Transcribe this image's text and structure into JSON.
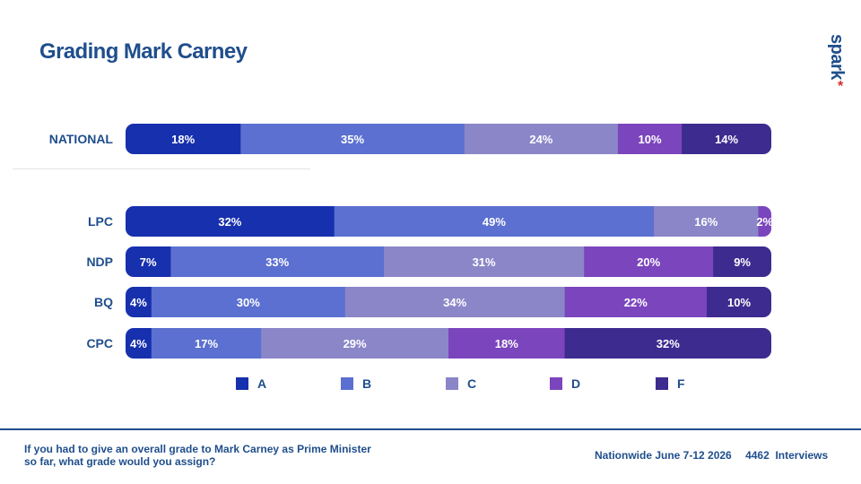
{
  "title": "Grading Mark Carney",
  "logo": {
    "text": "spark",
    "mark": "*"
  },
  "chart_data": {
    "type": "bar",
    "orientation": "horizontal",
    "stacked": true,
    "normalized": true,
    "categories": [
      "NATIONAL",
      "LPC",
      "NDP",
      "BQ",
      "CPC"
    ],
    "series": [
      {
        "name": "A",
        "color": "#1730ad",
        "values": [
          18,
          32,
          7,
          4,
          4
        ]
      },
      {
        "name": "B",
        "color": "#5b70d0",
        "values": [
          35,
          49,
          33,
          30,
          17
        ]
      },
      {
        "name": "C",
        "color": "#8b86c8",
        "values": [
          24,
          16,
          31,
          34,
          29
        ]
      },
      {
        "name": "D",
        "color": "#7b45bd",
        "values": [
          10,
          2,
          20,
          22,
          18
        ]
      },
      {
        "name": "F",
        "color": "#3d2b8f",
        "values": [
          14,
          0,
          9,
          10,
          32
        ]
      }
    ],
    "value_suffix": "%",
    "legend": "bottom",
    "grid": false
  },
  "footer": {
    "question": "If you had to give an overall grade to Mark Carney as Prime Minister so far, what grade would you assign?",
    "source": "Nationwide June 7-12 2026",
    "sample": "4462  Interviews"
  }
}
